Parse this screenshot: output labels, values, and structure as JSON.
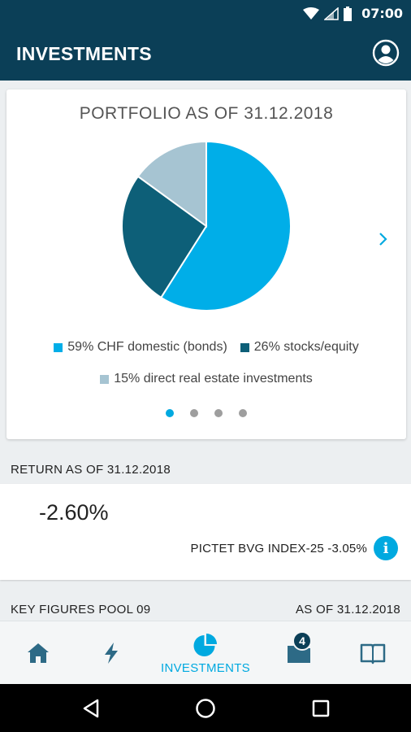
{
  "status_bar": {
    "time": "07:00"
  },
  "app_bar": {
    "title": "INVESTMENTS"
  },
  "portfolio": {
    "title": "PORTFOLIO AS OF 31.12.2018",
    "legend": [
      {
        "label": "59% CHF domestic (bonds)",
        "color": "#00aee8"
      },
      {
        "label": "26% stocks/equity",
        "color": "#0d5f78"
      },
      {
        "label": "15% direct real estate investments",
        "color": "#a6c4d2"
      }
    ],
    "pager": {
      "total": 4,
      "active": 0
    }
  },
  "chart_data": {
    "type": "pie",
    "title": "PORTFOLIO AS OF 31.12.2018",
    "categories": [
      "CHF domestic (bonds)",
      "stocks/equity",
      "direct real estate investments"
    ],
    "values": [
      59,
      26,
      15
    ],
    "colors": [
      "#00aee8",
      "#0d5f78",
      "#a6c4d2"
    ],
    "legend_position": "bottom"
  },
  "return_section": {
    "label": "RETURN AS OF 31.12.2018",
    "value": "-2.60%",
    "benchmark": "PICTET BVG INDEX-25 -3.05%"
  },
  "key_figures": {
    "label": "KEY FIGURES POOL 09",
    "date": "AS OF 31.12.2018"
  },
  "bottom_nav": {
    "investments_label": "INVESTMENTS",
    "documents_badge": "4"
  },
  "colors": {
    "primary_dark": "#0b3f57",
    "accent": "#00a9e0",
    "nav_icon": "#2d6a86"
  }
}
